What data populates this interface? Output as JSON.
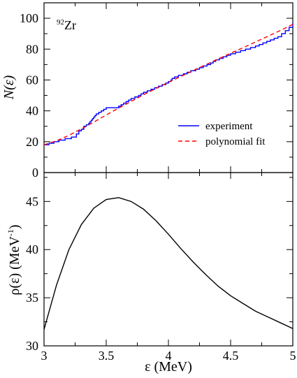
{
  "chart_data": [
    {
      "type": "line",
      "annotation": {
        "mass": "92",
        "element": "Zr"
      },
      "xlim": [
        3,
        5
      ],
      "ylim": [
        0,
        110
      ],
      "ylabel": "N(ε)",
      "yticks": [
        0,
        20,
        40,
        60,
        80,
        100
      ],
      "xticks": [
        3,
        3.5,
        4,
        4.5,
        5
      ],
      "legend_position": "bottom-right",
      "series": [
        {
          "name": "experiment",
          "color": "#0000ff",
          "style": "step",
          "x": [
            3.0,
            3.04,
            3.08,
            3.12,
            3.17,
            3.22,
            3.26,
            3.28,
            3.3,
            3.32,
            3.34,
            3.36,
            3.37,
            3.38,
            3.39,
            3.4,
            3.41,
            3.42,
            3.44,
            3.46,
            3.48,
            3.5,
            3.55,
            3.6,
            3.62,
            3.64,
            3.66,
            3.68,
            3.7,
            3.73,
            3.76,
            3.78,
            3.8,
            3.83,
            3.86,
            3.89,
            3.92,
            3.95,
            3.98,
            4.0,
            4.02,
            4.03,
            4.05,
            4.08,
            4.12,
            4.15,
            4.18,
            4.22,
            4.25,
            4.28,
            4.31,
            4.34,
            4.36,
            4.38,
            4.41,
            4.44,
            4.47,
            4.5,
            4.54,
            4.58,
            4.62,
            4.66,
            4.7,
            4.73,
            4.76,
            4.79,
            4.82,
            4.85,
            4.88,
            4.91,
            4.94,
            4.97,
            5.0
          ],
          "y": [
            18,
            19,
            20,
            21,
            22,
            23,
            25,
            27,
            28,
            30,
            31,
            32,
            33,
            34,
            35,
            36,
            37,
            38,
            39,
            40,
            41,
            42,
            42,
            43,
            44,
            45,
            46,
            47,
            48,
            49,
            50,
            51,
            52,
            53,
            54,
            55,
            56,
            57,
            58,
            59,
            60,
            61,
            62,
            63,
            64,
            65,
            66,
            67,
            68,
            69,
            70,
            71,
            72,
            73,
            74,
            75,
            76,
            77,
            78,
            79,
            80,
            81,
            82,
            83,
            84,
            85,
            86,
            87,
            88,
            90,
            92,
            94,
            97
          ]
        },
        {
          "name": "polynomial fit",
          "color": "#ff0000",
          "style": "dashed",
          "x": [
            3.0,
            3.1,
            3.2,
            3.3,
            3.4,
            3.5,
            3.6,
            3.7,
            3.8,
            3.9,
            4.0,
            4.1,
            4.2,
            4.3,
            4.4,
            4.5,
            4.6,
            4.7,
            4.8,
            4.9,
            5.0
          ],
          "y": [
            18,
            20.6,
            24.1,
            28.3,
            32.7,
            37.3,
            41.8,
            46.1,
            50.4,
            54.5,
            58.5,
            62.3,
            66.1,
            69.9,
            73.6,
            77.3,
            80.9,
            84.6,
            88.3,
            92.1,
            96
          ]
        }
      ]
    },
    {
      "type": "line",
      "xlim": [
        3,
        5
      ],
      "ylim": [
        30,
        48
      ],
      "xlabel": "ε (MeV)",
      "ylabel": "ρ(ε) (MeV",
      "ylabel_superscript": "-1",
      "ylabel_close": ")",
      "yticks": [
        30,
        35,
        40,
        45
      ],
      "xticks": [
        3,
        3.5,
        4,
        4.5,
        5
      ],
      "series": [
        {
          "color": "#000000",
          "style": "solid",
          "x": [
            3.0,
            3.1,
            3.2,
            3.3,
            3.4,
            3.5,
            3.6,
            3.7,
            3.8,
            3.9,
            4.0,
            4.1,
            4.2,
            4.3,
            4.4,
            4.5,
            4.6,
            4.7,
            4.8,
            4.9,
            5.0
          ],
          "y": [
            31.7,
            36.3,
            40.0,
            42.6,
            44.3,
            45.2,
            45.4,
            45.0,
            44.2,
            43.0,
            41.6,
            40.1,
            38.7,
            37.4,
            36.2,
            35.2,
            34.4,
            33.6,
            33.0,
            32.4,
            31.8
          ]
        }
      ]
    }
  ]
}
